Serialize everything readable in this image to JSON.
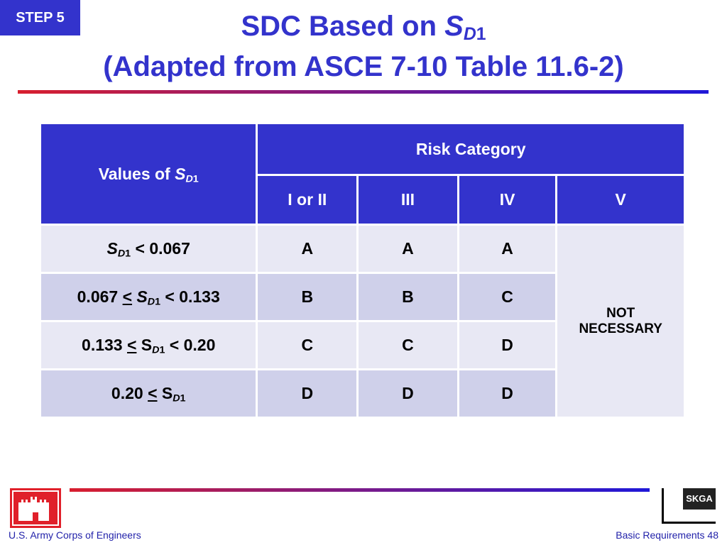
{
  "step": "STEP 5",
  "title": {
    "line1": [
      "SDC Based on ",
      "S",
      "D",
      "1"
    ],
    "line2": "(Adapted from ASCE 7-10 Table 11.6-2)"
  },
  "table": {
    "header": {
      "values_of": [
        "Values of ",
        "S",
        "D",
        "1"
      ],
      "risk_category": "Risk Category",
      "columns": [
        "I or II",
        "III",
        "IV",
        "V"
      ]
    },
    "rows": [
      {
        "range": [
          "S",
          "D",
          "1",
          " < 0.067"
        ],
        "cells": [
          "A",
          "A",
          "A"
        ]
      },
      {
        "range": [
          "0.067 ",
          "<",
          " S",
          "D",
          "1",
          " < 0.133"
        ],
        "cells": [
          "B",
          "B",
          "C"
        ]
      },
      {
        "range": [
          "0.133 ",
          "<",
          " S",
          "D",
          "1",
          " < 0.20"
        ],
        "cells": [
          "C",
          "C",
          "D"
        ]
      },
      {
        "range": [
          "0.20 ",
          "<",
          " S",
          "D",
          "1"
        ],
        "cells": [
          "D",
          "D",
          "D"
        ]
      }
    ],
    "merged_cell": "NOT NECESSARY"
  },
  "footer": {
    "left": "U.S. Army Corps of Engineers",
    "logo": "SKGA",
    "right": "Basic Requirements 48"
  }
}
